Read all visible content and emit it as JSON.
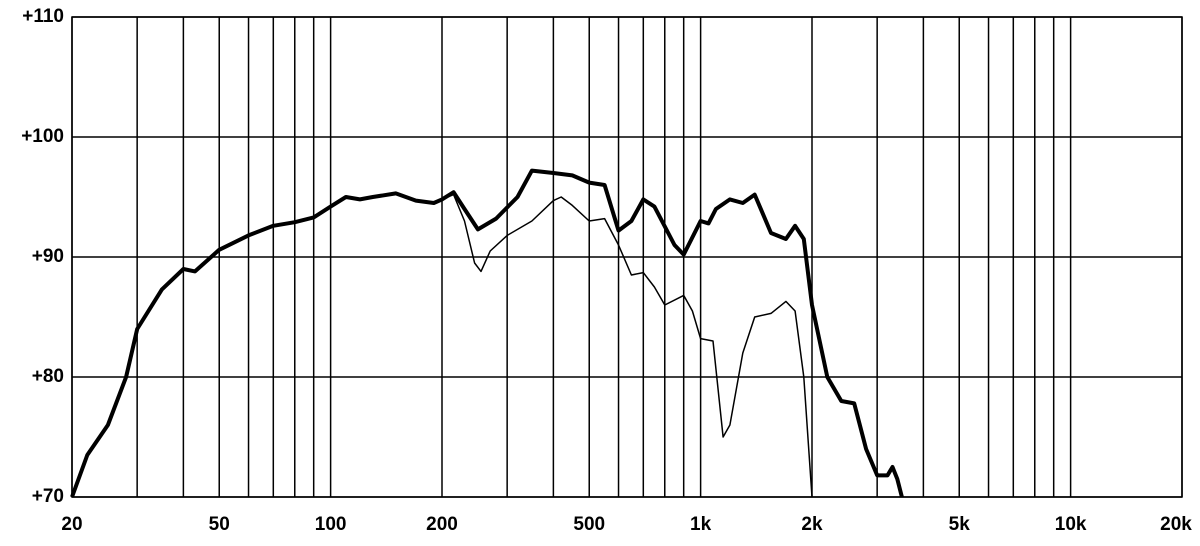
{
  "chart_data": {
    "type": "line",
    "xscale": "log",
    "grid": true,
    "xlim": [
      20,
      20000
    ],
    "ylim": [
      70,
      110
    ],
    "xticks": [
      20,
      50,
      100,
      200,
      500,
      {
        "value": 1000,
        "label": "1k"
      },
      {
        "value": 2000,
        "label": "2k"
      },
      {
        "value": 5000,
        "label": "5k"
      },
      {
        "value": 10000,
        "label": "10k"
      },
      {
        "value": 20000,
        "label": "20k"
      }
    ],
    "x_grid": [
      20,
      30,
      40,
      50,
      60,
      70,
      80,
      90,
      100,
      200,
      300,
      400,
      500,
      600,
      700,
      800,
      900,
      1000,
      2000,
      3000,
      4000,
      5000,
      6000,
      7000,
      8000,
      9000,
      10000,
      20000
    ],
    "yticks": [
      {
        "value": 70,
        "label": "+70"
      },
      {
        "value": 80,
        "label": "+80"
      },
      {
        "value": 90,
        "label": "+90"
      },
      {
        "value": 100,
        "label": "+100"
      },
      {
        "value": 110,
        "label": "+110"
      }
    ],
    "series": [
      {
        "color": "#000000",
        "width": 4,
        "x": [
          20,
          22,
          25,
          28,
          30,
          35,
          40,
          43,
          50,
          60,
          70,
          80,
          90,
          100,
          110,
          120,
          130,
          150,
          170,
          190,
          200,
          215,
          230,
          250,
          280,
          320,
          350,
          400,
          450,
          500,
          550,
          600,
          650,
          700,
          750,
          850,
          900,
          1000,
          1050,
          1100,
          1200,
          1300,
          1400,
          1550,
          1700,
          1800,
          1900,
          2000,
          2200,
          2400,
          2600,
          2800,
          3000,
          3200,
          3300,
          3400,
          3500
        ],
        "values": [
          70,
          73.5,
          76,
          80,
          84,
          87.3,
          89,
          88.8,
          90.6,
          91.8,
          92.6,
          92.9,
          93.3,
          94.2,
          95,
          94.8,
          95,
          95.3,
          94.7,
          94.5,
          94.8,
          95.4,
          94,
          92.3,
          93.2,
          95,
          97.2,
          97,
          96.8,
          96.2,
          96,
          92.2,
          93,
          94.8,
          94.2,
          91,
          90.2,
          93,
          92.8,
          94,
          94.8,
          94.5,
          95.2,
          92,
          91.5,
          92.6,
          91.5,
          86,
          80,
          78,
          77.8,
          74,
          71.8,
          71.8,
          72.5,
          71.5,
          70
        ]
      },
      {
        "color": "#000000",
        "width": 1.5,
        "x": [
          200,
          215,
          230,
          245,
          255,
          270,
          300,
          350,
          400,
          420,
          450,
          500,
          550,
          600,
          650,
          700,
          750,
          800,
          900,
          950,
          1000,
          1080,
          1150,
          1200,
          1300,
          1400,
          1550,
          1700,
          1800,
          1900,
          2000
        ],
        "values": [
          94.8,
          95.2,
          93,
          89.5,
          88.8,
          90.5,
          91.8,
          93,
          94.7,
          95,
          94.3,
          93,
          93.2,
          91,
          88.5,
          88.7,
          87.5,
          86,
          86.8,
          85.5,
          83.2,
          83,
          75,
          76,
          82,
          85,
          85.3,
          86.3,
          85.5,
          80,
          70
        ]
      }
    ]
  }
}
